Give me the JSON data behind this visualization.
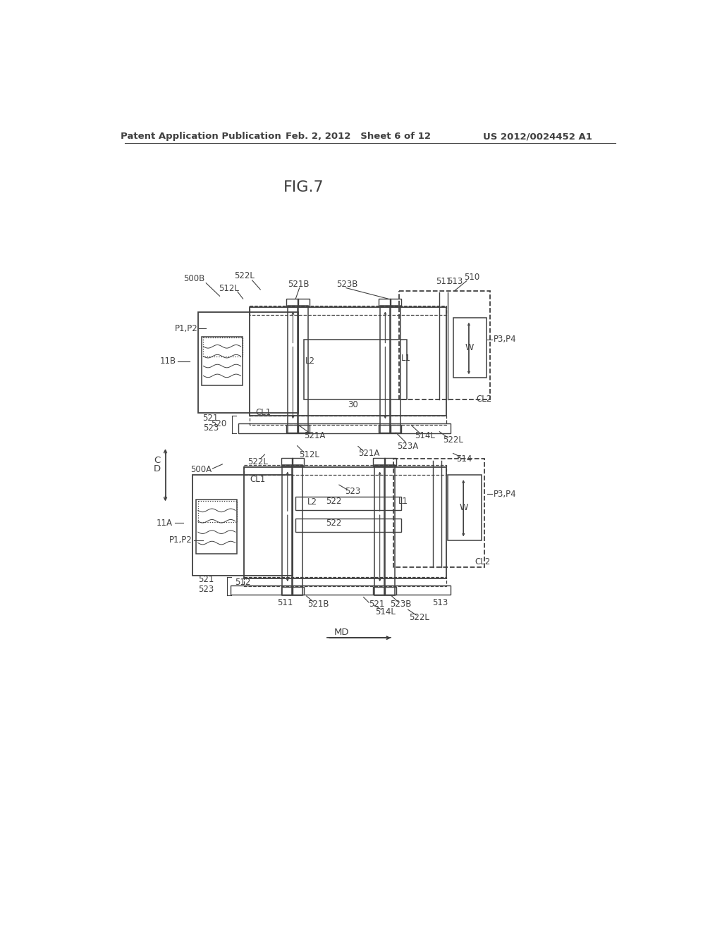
{
  "bg_color": "#ffffff",
  "header_left": "Patent Application Publication",
  "header_mid": "Feb. 2, 2012   Sheet 6 of 12",
  "header_right": "US 2012/0024452 A1",
  "figure_title": "FIG.7",
  "lc": "#404040",
  "tc": "#404040",
  "lw_main": 1.4,
  "lw_inner": 1.1,
  "lw_thin": 0.8,
  "fs_label": 8.5,
  "fs_title": 16,
  "fs_header": 9.5
}
